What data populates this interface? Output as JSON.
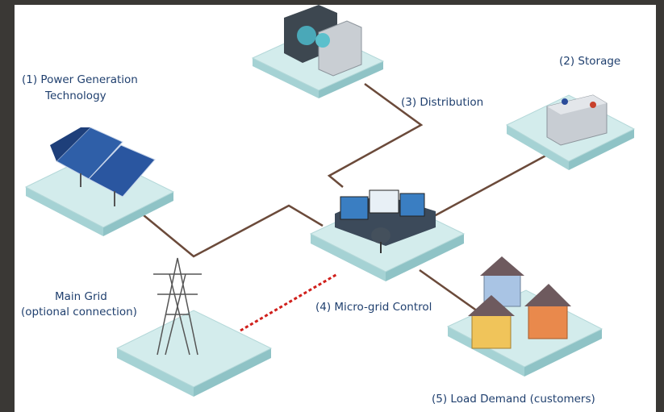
{
  "nodes": [
    {
      "label": [
        "(1) Power Generation",
        "Technology"
      ]
    },
    {
      "label": [
        "(2) Storage"
      ]
    },
    {
      "label": [
        "(3) Distribution"
      ]
    },
    {
      "label": [
        "(4) Micro-grid Control"
      ]
    },
    {
      "label": [
        "(5) Load Demand (customers)"
      ]
    },
    {
      "label": [
        "Main Grid",
        "(optional connection)"
      ]
    }
  ]
}
